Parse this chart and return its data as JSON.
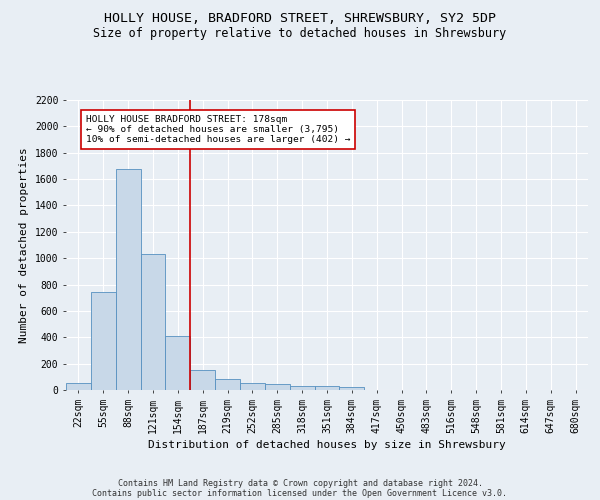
{
  "title": "HOLLY HOUSE, BRADFORD STREET, SHREWSBURY, SY2 5DP",
  "subtitle": "Size of property relative to detached houses in Shrewsbury",
  "xlabel": "Distribution of detached houses by size in Shrewsbury",
  "ylabel": "Number of detached properties",
  "footer1": "Contains HM Land Registry data © Crown copyright and database right 2024.",
  "footer2": "Contains public sector information licensed under the Open Government Licence v3.0.",
  "bar_labels": [
    "22sqm",
    "55sqm",
    "88sqm",
    "121sqm",
    "154sqm",
    "187sqm",
    "219sqm",
    "252sqm",
    "285sqm",
    "318sqm",
    "351sqm",
    "384sqm",
    "417sqm",
    "450sqm",
    "483sqm",
    "516sqm",
    "548sqm",
    "581sqm",
    "614sqm",
    "647sqm",
    "680sqm"
  ],
  "bar_values": [
    55,
    745,
    1675,
    1035,
    410,
    155,
    85,
    50,
    45,
    30,
    30,
    20,
    0,
    0,
    0,
    0,
    0,
    0,
    0,
    0,
    0
  ],
  "bar_color": "#c8d8e8",
  "bar_edge_color": "#5590c0",
  "vline_index": 5,
  "vline_color": "#cc0000",
  "annotation_text": "HOLLY HOUSE BRADFORD STREET: 178sqm\n← 90% of detached houses are smaller (3,795)\n10% of semi-detached houses are larger (402) →",
  "annotation_box_color": "#ffffff",
  "annotation_box_edge": "#cc0000",
  "ylim": [
    0,
    2200
  ],
  "yticks": [
    0,
    200,
    400,
    600,
    800,
    1000,
    1200,
    1400,
    1600,
    1800,
    2000,
    2200
  ],
  "background_color": "#e8eef4",
  "grid_color": "#ffffff",
  "title_fontsize": 9.5,
  "subtitle_fontsize": 8.5,
  "axis_label_fontsize": 8,
  "tick_fontsize": 7,
  "footer_fontsize": 6
}
